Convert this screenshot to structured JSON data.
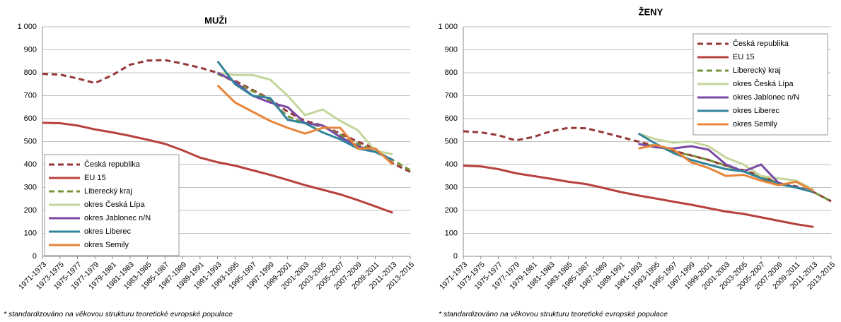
{
  "chart_data": [
    {
      "type": "line",
      "title": "MUŽI",
      "footnote": "* standardizováno na věkovou strukturu teoretické evropské populace",
      "categories": [
        "1971-1973",
        "1973-1975",
        "1975-1977",
        "1977-1979",
        "1979-1981",
        "1981-1983",
        "1983-1985",
        "1985-1987",
        "1987-1989",
        "1989-1991",
        "1991-1993",
        "1993-1995",
        "1995-1997",
        "1997-1999",
        "1999-2001",
        "2001-2003",
        "2003-2005",
        "2005-2007",
        "2007-2009",
        "2009-2011",
        "2011-2013",
        "2013-2015"
      ],
      "ylim": [
        0,
        1000
      ],
      "yticks": [
        0,
        100,
        200,
        300,
        400,
        500,
        600,
        700,
        800,
        900,
        {
          "value": 1000,
          "label": "1 000"
        }
      ],
      "grid": true,
      "legend_position": "lower left",
      "series": [
        {
          "name": "Česká republika",
          "color": "#953735",
          "style": "dashed",
          "values": [
            795,
            792,
            775,
            755,
            790,
            835,
            853,
            855,
            840,
            822,
            800,
            765,
            725,
            685,
            630,
            590,
            570,
            535,
            500,
            470,
            405,
            368
          ]
        },
        {
          "name": "EU 15",
          "color": "#b7413e",
          "style": "solid",
          "values": [
            582,
            580,
            570,
            553,
            540,
            525,
            508,
            490,
            462,
            430,
            410,
            395,
            375,
            355,
            333,
            310,
            290,
            270,
            245,
            218,
            190,
            null
          ]
        },
        {
          "name": "Liberecký kraj",
          "color": "#77933c",
          "style": "dashed",
          "values": [
            null,
            null,
            null,
            null,
            null,
            null,
            null,
            null,
            null,
            null,
            795,
            760,
            720,
            680,
            610,
            580,
            565,
            530,
            490,
            460,
            420,
            375
          ]
        },
        {
          "name": "okres Česká Lípa",
          "color": "#c3d69b",
          "style": "solid",
          "values": [
            null,
            null,
            null,
            null,
            null,
            null,
            null,
            null,
            null,
            null,
            800,
            790,
            790,
            770,
            700,
            615,
            640,
            590,
            550,
            460,
            445,
            null
          ]
        },
        {
          "name": "okres Jablonec n/N",
          "color": "#7a49a5",
          "style": "solid",
          "values": [
            null,
            null,
            null,
            null,
            null,
            null,
            null,
            null,
            null,
            null,
            800,
            760,
            700,
            670,
            650,
            580,
            570,
            520,
            480,
            455,
            420,
            null
          ]
        },
        {
          "name": "okres Liberec",
          "color": "#31849b",
          "style": "solid",
          "values": [
            null,
            null,
            null,
            null,
            null,
            null,
            null,
            null,
            null,
            null,
            850,
            750,
            700,
            690,
            595,
            580,
            540,
            510,
            470,
            455,
            420,
            null
          ]
        },
        {
          "name": "okres Semily",
          "color": "#e8853a",
          "style": "solid",
          "values": [
            null,
            null,
            null,
            null,
            null,
            null,
            null,
            null,
            null,
            null,
            745,
            670,
            630,
            590,
            560,
            535,
            560,
            560,
            470,
            470,
            400,
            null
          ]
        }
      ]
    },
    {
      "type": "line",
      "title": "ŽENY",
      "footnote": "* standardizováno na věkovou strukturu teoretické evropské populace",
      "categories": [
        "1971-1973",
        "1973-1975",
        "1975-1977",
        "1977-1979",
        "1979-1981",
        "1981-1983",
        "1983-1985",
        "1985-1987",
        "1987-1989",
        "1989-1991",
        "1991-1993",
        "1993-1995",
        "1995-1997",
        "1997-1999",
        "1999-2001",
        "2001-2003",
        "2003-2005",
        "2005-2007",
        "2007-2009",
        "2009-2011",
        "2011-2013",
        "2013-2015"
      ],
      "ylim": [
        0,
        1000
      ],
      "yticks": [
        0,
        100,
        200,
        300,
        400,
        500,
        600,
        700,
        800,
        900,
        {
          "value": 1000,
          "label": "1 000"
        }
      ],
      "grid": true,
      "legend_position": "upper right",
      "series": [
        {
          "name": "Česká republika",
          "color": "#953735",
          "style": "dashed",
          "values": [
            545,
            540,
            528,
            505,
            520,
            545,
            560,
            558,
            540,
            520,
            500,
            480,
            460,
            440,
            420,
            395,
            375,
            350,
            320,
            305,
            280,
            240
          ]
        },
        {
          "name": "EU 15",
          "color": "#b7413e",
          "style": "solid",
          "values": [
            395,
            392,
            380,
            362,
            350,
            338,
            325,
            315,
            298,
            280,
            265,
            252,
            238,
            225,
            210,
            195,
            185,
            170,
            155,
            140,
            128,
            null
          ]
        },
        {
          "name": "Liberecký kraj",
          "color": "#77933c",
          "style": "dashed",
          "values": [
            null,
            null,
            null,
            null,
            null,
            null,
            null,
            null,
            null,
            null,
            490,
            480,
            455,
            440,
            420,
            395,
            370,
            345,
            320,
            300,
            280,
            240
          ]
        },
        {
          "name": "okres Česká Lípa",
          "color": "#c3d69b",
          "style": "solid",
          "values": [
            null,
            null,
            null,
            null,
            null,
            null,
            null,
            null,
            null,
            null,
            535,
            510,
            495,
            500,
            480,
            430,
            400,
            350,
            340,
            330,
            290,
            null
          ]
        },
        {
          "name": "okres Jablonec n/N",
          "color": "#7a49a5",
          "style": "solid",
          "values": [
            null,
            null,
            null,
            null,
            null,
            null,
            null,
            null,
            null,
            null,
            490,
            475,
            470,
            480,
            465,
            400,
            370,
            400,
            320,
            300,
            280,
            null
          ]
        },
        {
          "name": "okres Liberec",
          "color": "#31849b",
          "style": "solid",
          "values": [
            null,
            null,
            null,
            null,
            null,
            null,
            null,
            null,
            null,
            null,
            535,
            490,
            450,
            420,
            400,
            380,
            370,
            340,
            315,
            300,
            280,
            null
          ]
        },
        {
          "name": "okres Semily",
          "color": "#e8853a",
          "style": "solid",
          "values": [
            null,
            null,
            null,
            null,
            null,
            null,
            null,
            null,
            null,
            null,
            470,
            485,
            465,
            410,
            385,
            350,
            355,
            330,
            310,
            325,
            285,
            null
          ]
        }
      ]
    }
  ]
}
